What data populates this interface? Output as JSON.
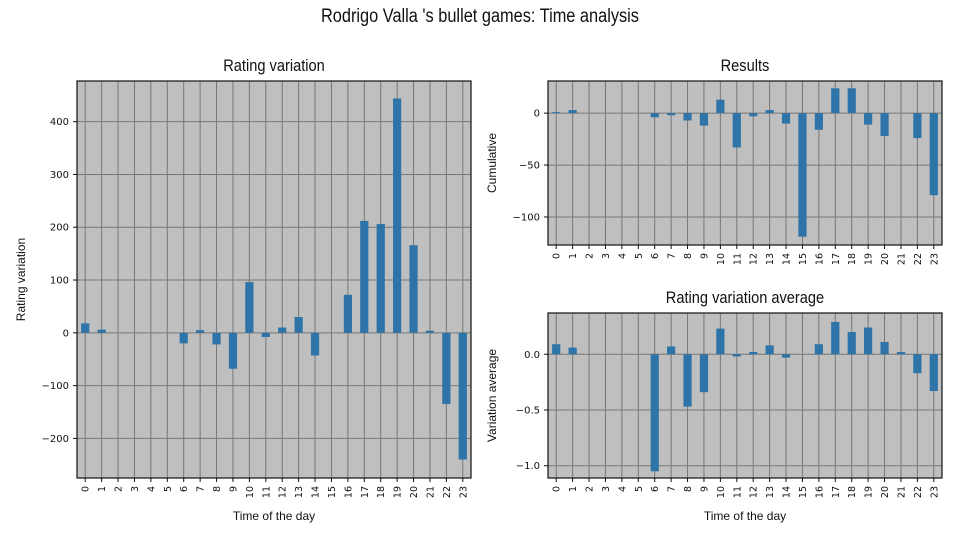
{
  "figure": {
    "title": "Rodrigo Valla 's bullet games: Time analysis"
  },
  "chart_data": [
    {
      "id": "rating",
      "type": "bar",
      "title": "Rating variation",
      "xlabel": "Time of the day",
      "ylabel": "Rating variation",
      "categories": [
        "0",
        "1",
        "2",
        "3",
        "4",
        "5",
        "6",
        "7",
        "8",
        "9",
        "10",
        "11",
        "12",
        "13",
        "14",
        "15",
        "16",
        "17",
        "18",
        "19",
        "20",
        "21",
        "22",
        "23"
      ],
      "values": [
        18,
        6,
        0,
        0,
        0,
        0,
        -20,
        5,
        -22,
        -68,
        96,
        -8,
        10,
        30,
        -43,
        0,
        72,
        212,
        206,
        444,
        166,
        4,
        -135,
        -240
      ],
      "ylim": [
        -275,
        477
      ],
      "yticks": [
        -200,
        -100,
        0,
        100,
        200,
        300,
        400
      ],
      "ytick_labels": [
        "−200",
        "−100",
        "0",
        "100",
        "200",
        "300",
        "400"
      ],
      "grid": true,
      "bar_color": "#2e74a8",
      "background": "#bfbfbf"
    },
    {
      "id": "results",
      "type": "bar",
      "title": "Results",
      "xlabel": "",
      "ylabel": "Cumulative",
      "categories": [
        "0",
        "1",
        "2",
        "3",
        "4",
        "5",
        "6",
        "7",
        "8",
        "9",
        "10",
        "11",
        "12",
        "13",
        "14",
        "15",
        "16",
        "17",
        "18",
        "19",
        "20",
        "21",
        "22",
        "23"
      ],
      "values": [
        1,
        3,
        0,
        0,
        0,
        0,
        -4,
        -2,
        -7,
        -12,
        13,
        -33,
        -3,
        3,
        -10,
        -119,
        -16,
        24,
        24,
        -11,
        -22,
        0,
        -24,
        -79
      ],
      "ylim": [
        -127,
        31
      ],
      "yticks": [
        -100,
        -50,
        0
      ],
      "ytick_labels": [
        "−100",
        "−50",
        "0"
      ],
      "grid": true,
      "bar_color": "#2e74a8",
      "background": "#bfbfbf"
    },
    {
      "id": "average",
      "type": "bar",
      "title": "Rating variation average",
      "xlabel": "Time of the day",
      "ylabel": "Variation average",
      "categories": [
        "0",
        "1",
        "2",
        "3",
        "4",
        "5",
        "6",
        "7",
        "8",
        "9",
        "10",
        "11",
        "12",
        "13",
        "14",
        "15",
        "16",
        "17",
        "18",
        "19",
        "20",
        "21",
        "22",
        "23"
      ],
      "values": [
        0.09,
        0.06,
        0,
        0,
        0,
        0,
        -1.05,
        0.07,
        -0.47,
        -0.34,
        0.23,
        -0.02,
        0.02,
        0.08,
        -0.03,
        0,
        0.09,
        0.29,
        0.2,
        0.24,
        0.11,
        0.02,
        -0.17,
        -0.33
      ],
      "ylim": [
        -1.11,
        0.37
      ],
      "yticks": [
        -1.0,
        -0.5,
        0.0
      ],
      "ytick_labels": [
        "−1.0",
        "−0.5",
        "0.0"
      ],
      "grid": true,
      "bar_color": "#2e74a8",
      "background": "#bfbfbf"
    }
  ]
}
